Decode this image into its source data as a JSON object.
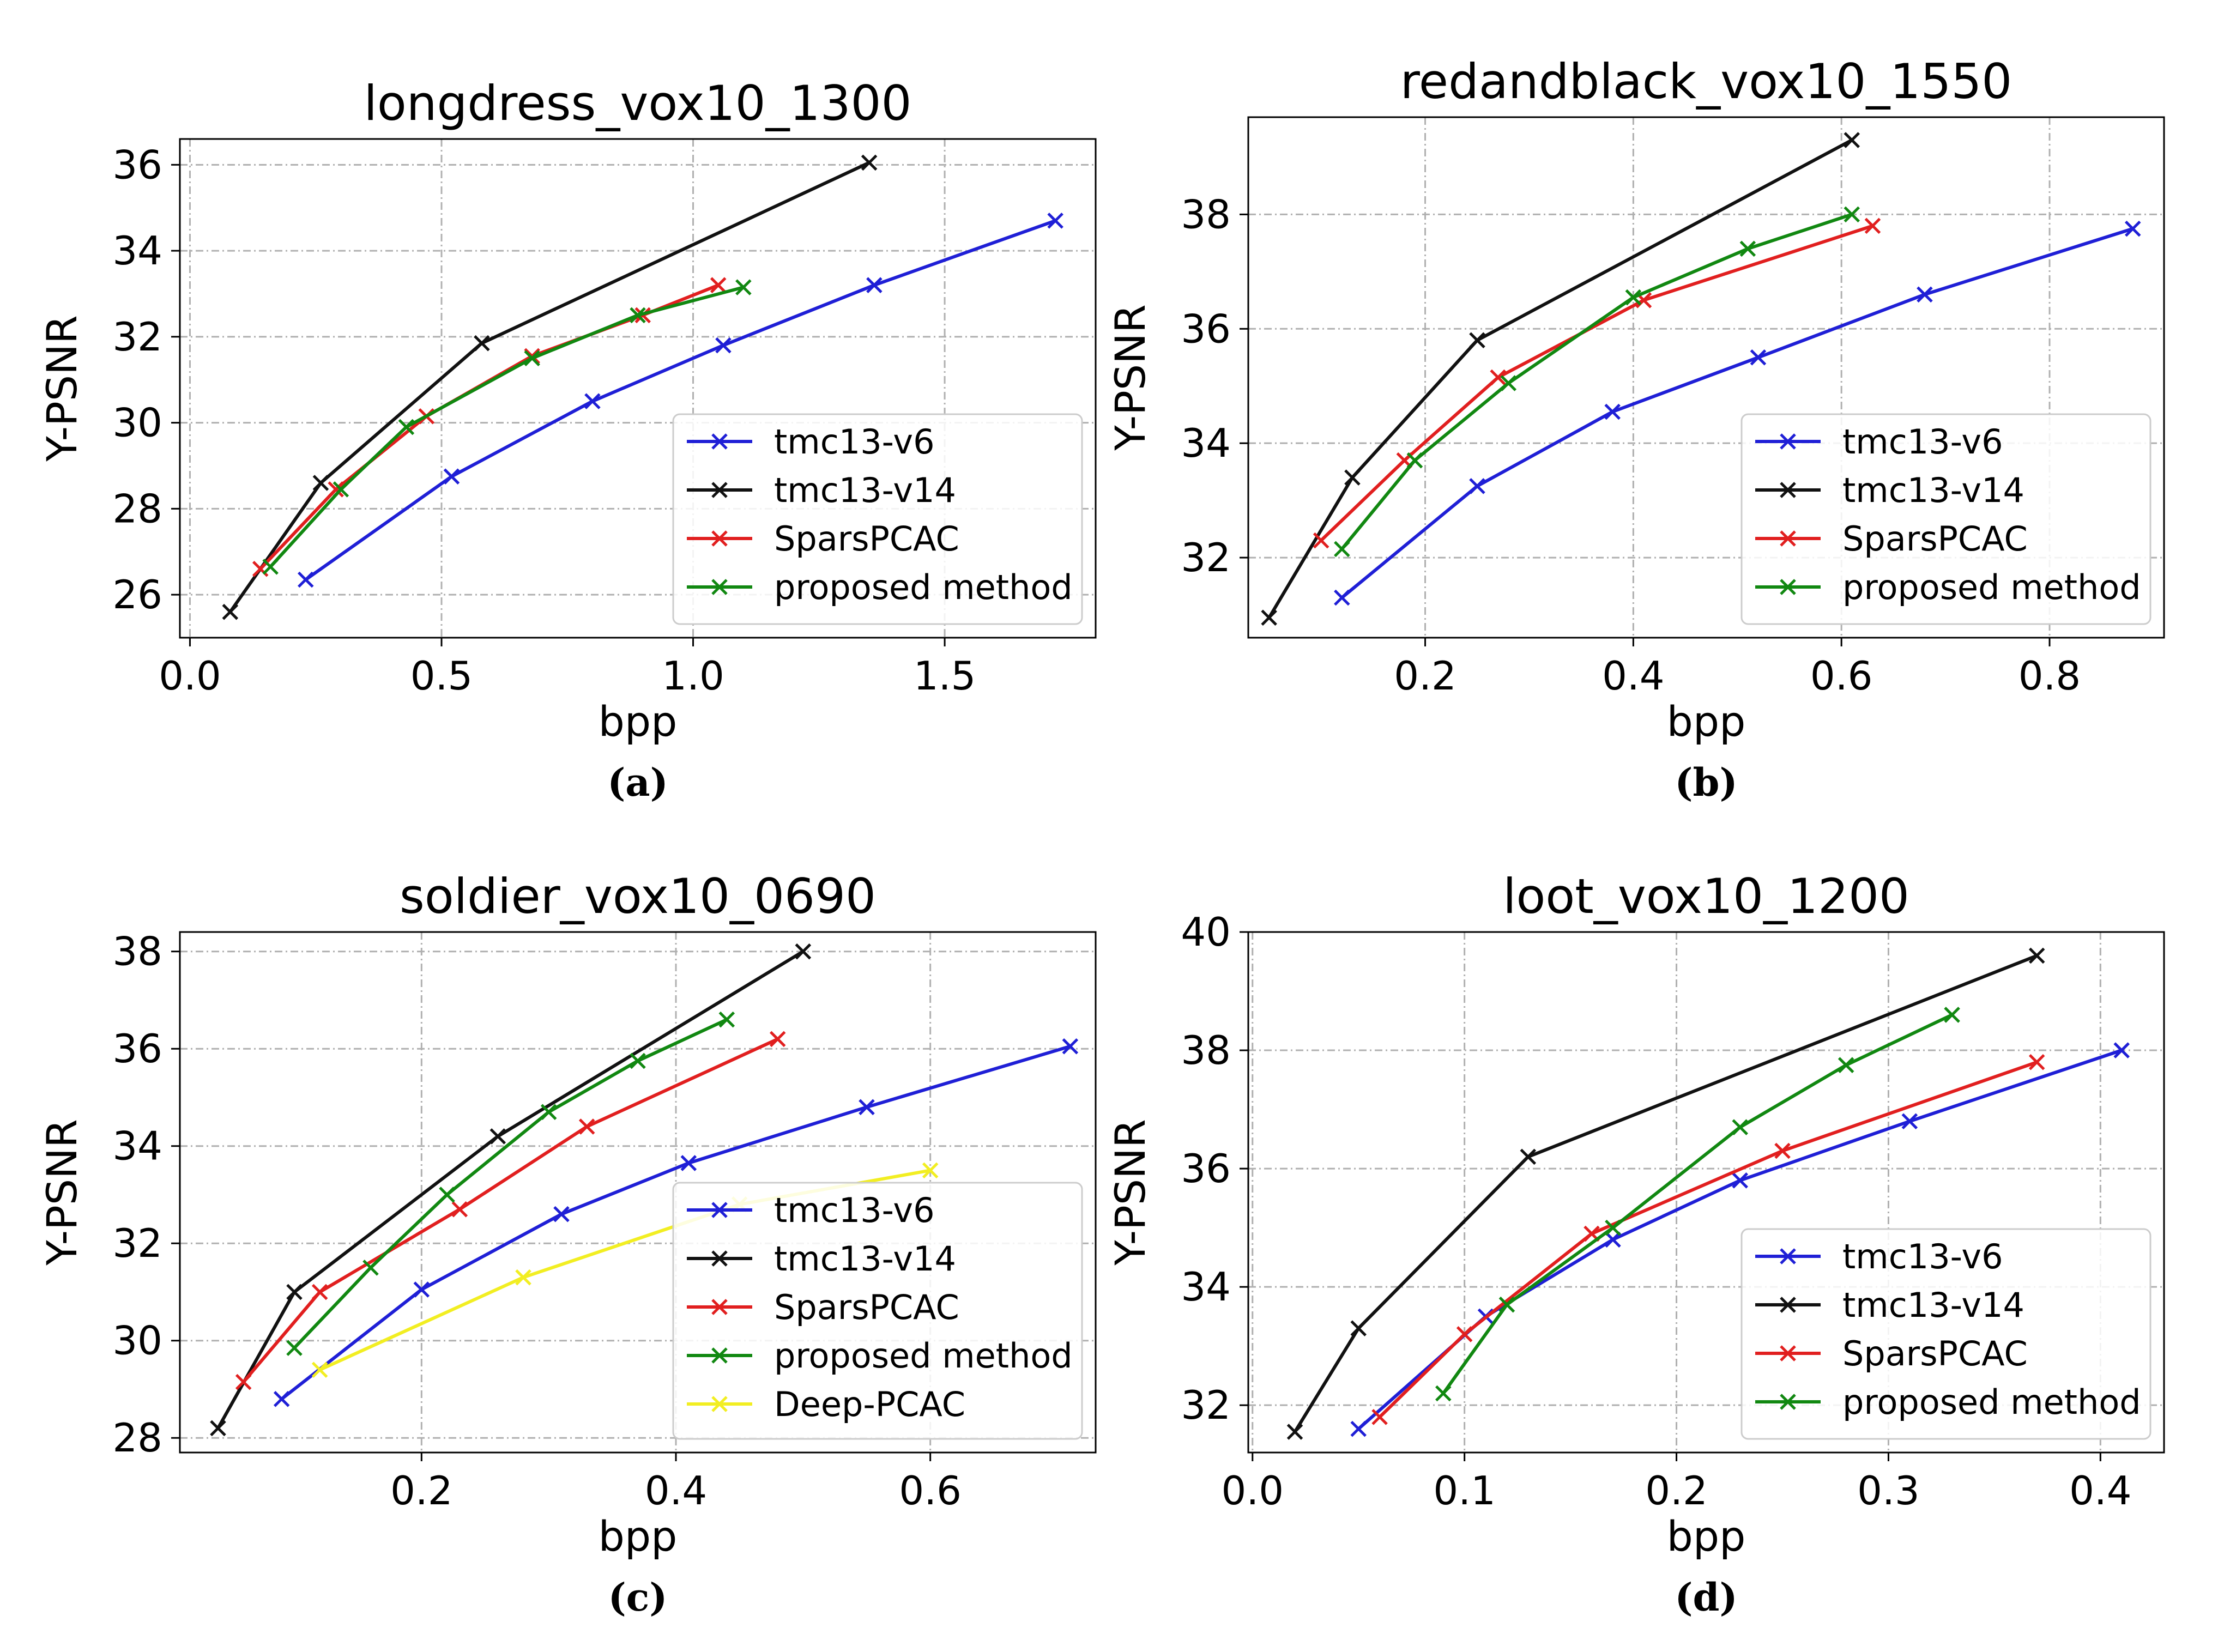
{
  "colors": {
    "tmc13-v6": "#1f1fd6",
    "tmc13-v14": "#111111",
    "SparsPCAC": "#e11f1f",
    "proposed method": "#118811",
    "Deep-PCAC": "#f2ee22"
  },
  "chart_data": [
    {
      "type": "line",
      "title": "longdress_vox10_1300",
      "xlabel": "bpp",
      "ylabel": "Y-PSNR",
      "caption": "(a)",
      "xlim": [
        -0.02,
        1.8
      ],
      "ylim": [
        25.0,
        36.6
      ],
      "xticks": [
        0.0,
        0.5,
        1.0,
        1.5
      ],
      "xtick_labels": [
        "0.0",
        "0.5",
        "1.0",
        "1.5"
      ],
      "yticks": [
        26,
        28,
        30,
        32,
        34,
        36
      ],
      "ytick_labels": [
        "26",
        "28",
        "30",
        "32",
        "34",
        "36"
      ],
      "legend": "lower-right",
      "series": [
        {
          "name": "tmc13-v6",
          "x": [
            0.23,
            0.52,
            0.8,
            1.06,
            1.36,
            1.72
          ],
          "y": [
            26.35,
            28.75,
            30.5,
            31.8,
            33.2,
            34.7
          ]
        },
        {
          "name": "tmc13-v14",
          "x": [
            0.08,
            0.26,
            0.58,
            1.35
          ],
          "y": [
            25.6,
            28.6,
            31.85,
            36.05
          ]
        },
        {
          "name": "SparsPCAC",
          "x": [
            0.14,
            0.29,
            0.47,
            0.68,
            0.9,
            1.05
          ],
          "y": [
            26.6,
            28.45,
            30.15,
            31.55,
            32.5,
            33.2
          ]
        },
        {
          "name": "proposed method",
          "x": [
            0.16,
            0.3,
            0.43,
            0.68,
            0.89,
            1.1
          ],
          "y": [
            26.65,
            28.45,
            29.9,
            31.5,
            32.5,
            33.15
          ]
        }
      ]
    },
    {
      "type": "line",
      "title": "redandblack_vox10_1550",
      "xlabel": "bpp",
      "ylabel": "Y-PSNR",
      "caption": "(b)",
      "xlim": [
        0.03,
        0.91
      ],
      "ylim": [
        30.6,
        39.7
      ],
      "xticks": [
        0.2,
        0.4,
        0.6,
        0.8
      ],
      "xtick_labels": [
        "0.2",
        "0.4",
        "0.6",
        "0.8"
      ],
      "yticks": [
        32,
        34,
        36,
        38
      ],
      "ytick_labels": [
        "32",
        "34",
        "36",
        "38"
      ],
      "legend": "lower-right",
      "series": [
        {
          "name": "tmc13-v6",
          "x": [
            0.12,
            0.25,
            0.38,
            0.52,
            0.68,
            0.88
          ],
          "y": [
            31.3,
            33.25,
            34.55,
            35.5,
            36.6,
            37.75
          ]
        },
        {
          "name": "tmc13-v14",
          "x": [
            0.05,
            0.13,
            0.25,
            0.61
          ],
          "y": [
            30.95,
            33.4,
            35.8,
            39.3
          ]
        },
        {
          "name": "SparsPCAC",
          "x": [
            0.1,
            0.18,
            0.27,
            0.41,
            0.63
          ],
          "y": [
            32.3,
            33.7,
            35.15,
            36.5,
            37.8
          ]
        },
        {
          "name": "proposed method",
          "x": [
            0.12,
            0.19,
            0.28,
            0.4,
            0.51,
            0.61
          ],
          "y": [
            32.15,
            33.7,
            35.05,
            36.55,
            37.4,
            38.0
          ]
        }
      ]
    },
    {
      "type": "line",
      "title": "soldier_vox10_0690",
      "xlabel": "bpp",
      "ylabel": "Y-PSNR",
      "caption": "(c)",
      "xlim": [
        0.01,
        0.73
      ],
      "ylim": [
        27.7,
        38.4
      ],
      "xticks": [
        0.2,
        0.4,
        0.6
      ],
      "xtick_labels": [
        "0.2",
        "0.4",
        "0.6"
      ],
      "yticks": [
        28,
        30,
        32,
        34,
        36,
        38
      ],
      "ytick_labels": [
        "28",
        "30",
        "32",
        "34",
        "36",
        "38"
      ],
      "legend": "lower-right",
      "series": [
        {
          "name": "tmc13-v6",
          "x": [
            0.09,
            0.2,
            0.31,
            0.41,
            0.55,
            0.71
          ],
          "y": [
            28.8,
            31.05,
            32.6,
            33.65,
            34.8,
            36.05
          ]
        },
        {
          "name": "tmc13-v14",
          "x": [
            0.04,
            0.1,
            0.26,
            0.5
          ],
          "y": [
            28.2,
            31.0,
            34.2,
            38.0
          ]
        },
        {
          "name": "SparsPCAC",
          "x": [
            0.06,
            0.12,
            0.23,
            0.33,
            0.48
          ],
          "y": [
            29.15,
            31.0,
            32.7,
            34.4,
            36.2
          ]
        },
        {
          "name": "proposed method",
          "x": [
            0.1,
            0.16,
            0.22,
            0.3,
            0.37,
            0.44
          ],
          "y": [
            29.85,
            31.5,
            33.0,
            34.7,
            35.75,
            36.6
          ]
        },
        {
          "name": "Deep-PCAC",
          "x": [
            0.12,
            0.28,
            0.45,
            0.6
          ],
          "y": [
            29.4,
            31.3,
            32.8,
            33.5
          ]
        }
      ]
    },
    {
      "type": "line",
      "title": "loot_vox10_1200",
      "xlabel": "bpp",
      "ylabel": "Y-PSNR",
      "caption": "(d)",
      "xlim": [
        -0.002,
        0.43
      ],
      "ylim": [
        31.2,
        40.0
      ],
      "xticks": [
        0.0,
        0.1,
        0.2,
        0.3,
        0.4
      ],
      "xtick_labels": [
        "0.0",
        "0.1",
        "0.2",
        "0.3",
        "0.4"
      ],
      "yticks": [
        32,
        34,
        36,
        38,
        40
      ],
      "ytick_labels": [
        "32",
        "34",
        "36",
        "38",
        "40"
      ],
      "legend": "lower-right",
      "series": [
        {
          "name": "tmc13-v6",
          "x": [
            0.05,
            0.11,
            0.17,
            0.23,
            0.31,
            0.41
          ],
          "y": [
            31.6,
            33.5,
            34.8,
            35.8,
            36.8,
            38.0
          ]
        },
        {
          "name": "tmc13-v14",
          "x": [
            0.02,
            0.05,
            0.13,
            0.37
          ],
          "y": [
            31.55,
            33.3,
            36.2,
            39.6
          ]
        },
        {
          "name": "SparsPCAC",
          "x": [
            0.06,
            0.1,
            0.16,
            0.25,
            0.37
          ],
          "y": [
            31.8,
            33.2,
            34.9,
            36.3,
            37.8
          ]
        },
        {
          "name": "proposed method",
          "x": [
            0.09,
            0.12,
            0.17,
            0.23,
            0.28,
            0.33
          ],
          "y": [
            32.2,
            33.7,
            35.0,
            36.7,
            37.75,
            38.6
          ]
        }
      ]
    }
  ]
}
